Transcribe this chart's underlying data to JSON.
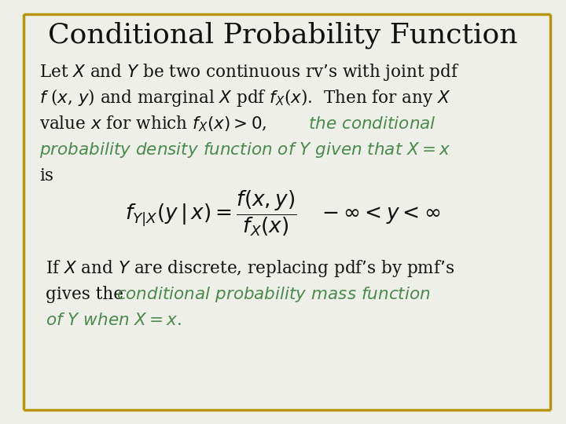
{
  "title": "Conditional Probability Function",
  "title_fontsize": 26,
  "background_color": "#efefea",
  "border_color": "#b8960c",
  "border_linewidth": 2.5,
  "text_color_black": "#111111",
  "text_color_green": "#4a8a4a",
  "body_fontsize": 15.5,
  "formula_fontsize": 16
}
